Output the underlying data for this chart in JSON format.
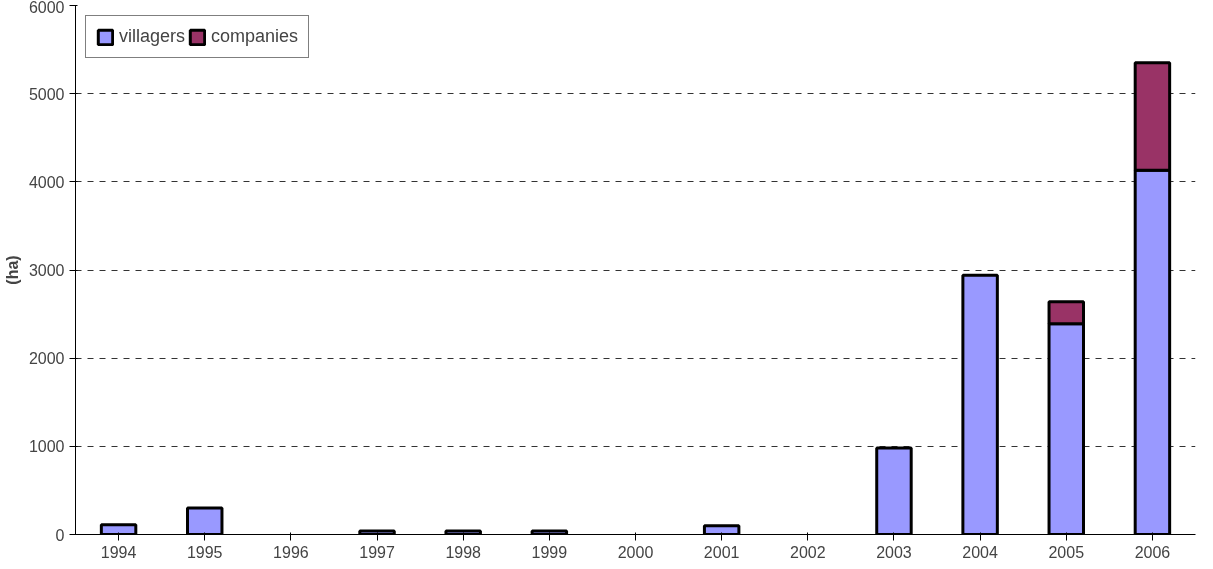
{
  "chart_data": {
    "type": "bar",
    "stacked": true,
    "ylabel": "(ha)",
    "categories": [
      "1994",
      "1995",
      "1996",
      "1997",
      "1998",
      "1999",
      "2000",
      "2001",
      "2002",
      "2003",
      "2004",
      "2005",
      "2006"
    ],
    "series": [
      {
        "name": "villagers",
        "color": "#9999ff",
        "values": [
          110,
          300,
          null,
          40,
          40,
          40,
          null,
          100,
          null,
          980,
          2940,
          2390,
          4130
        ]
      },
      {
        "name": "companies",
        "color": "#993366",
        "values": [
          null,
          null,
          null,
          null,
          null,
          null,
          null,
          null,
          null,
          null,
          null,
          250,
          1220
        ]
      }
    ],
    "ylim": [
      0,
      6000
    ],
    "yticks": [
      0,
      1000,
      2000,
      3000,
      4000,
      5000,
      6000
    ],
    "grid": "y",
    "legend": "top left"
  }
}
